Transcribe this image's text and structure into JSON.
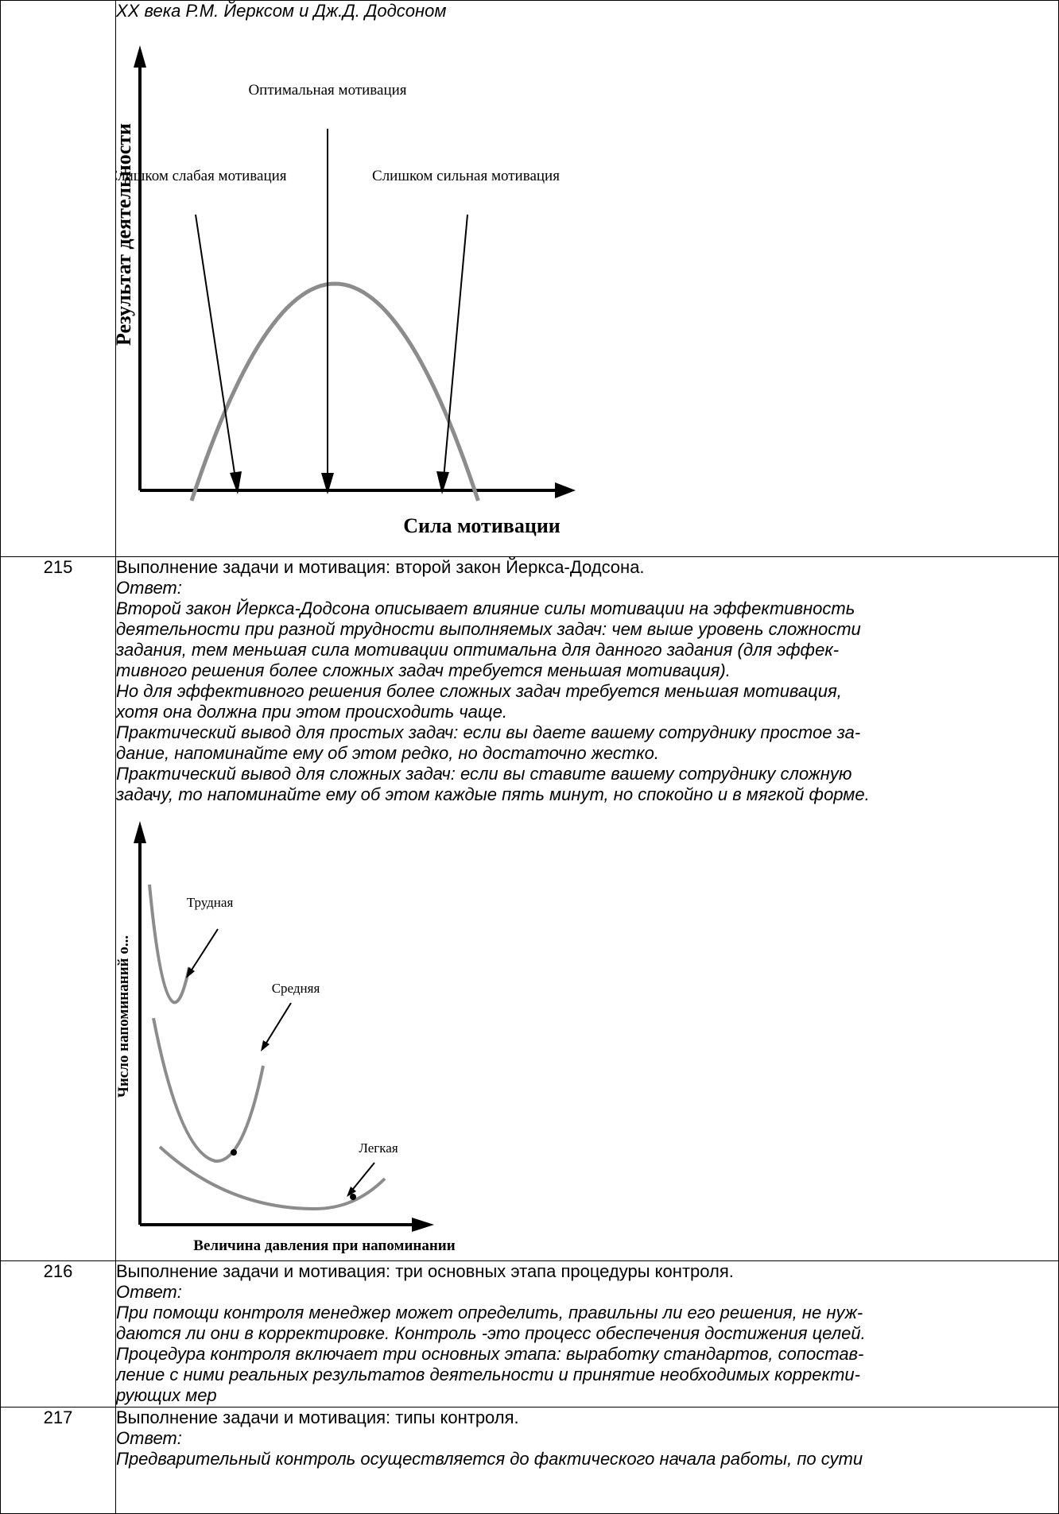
{
  "row_top": {
    "continued_text": "XX века Р.М. Йерксом и Дж.Д. Додсоном",
    "chart_data": {
      "type": "line",
      "title": "",
      "xlabel": "Сила мотивации",
      "ylabel": "Результат деятельности",
      "series": [
        {
          "x": [
            0.1,
            0.3,
            0.5,
            0.7,
            0.9
          ],
          "y": [
            0.35,
            0.8,
            1.0,
            0.8,
            0.35
          ]
        }
      ],
      "annotations": [
        {
          "text": "Оптимальная мотивация",
          "x": 0.5
        },
        {
          "text": "Слишком слабая мотивация",
          "x": 0.2
        },
        {
          "text": "Слишком сильная мотивация",
          "x": 0.8
        }
      ],
      "grid": false
    }
  },
  "row_215": {
    "number": "215",
    "question": "Выполнение задачи и мотивация: второй закон Йеркса-Додсона.",
    "answer_label": "Ответ:",
    "answer_paragraphs": [
      "Второй закон Йеркса-Додсона описывает влияние силы мотивации на эффективность",
      "деятельности при разной трудности выполняемых задач: чем выше уровень сложности",
      "задания, тем меньшая сила мотивации оптимальна для данного задания (для эффек-",
      "тивного решения более сложных задач требуется меньшая мотивация).",
      "Но для эффективного решения более сложных задач требуется меньшая мотивация,",
      "хотя она должна при этом происходить чаще.",
      "Практический вывод для простых задач: если вы даете вашему сотруднику простое за-",
      "дание, напоминайте ему об этом редко, но достаточно жестко.",
      "Практический вывод для сложных задач: если вы ставите вашему сотруднику сложную",
      "задачу, то напоминайте ему об этом каждые пять минут, но спокойно и в мягкой форме."
    ],
    "chart_data": {
      "type": "line",
      "title": "",
      "xlabel": "Величина давления при напоминании",
      "ylabel": "Число напоминаний о...",
      "series": [
        {
          "name": "Трудная",
          "x": [
            0.05,
            0.12,
            0.18
          ],
          "y": [
            0.85,
            0.55,
            0.7
          ]
        },
        {
          "name": "Средняя",
          "x": [
            0.05,
            0.3,
            0.5
          ],
          "y": [
            0.6,
            0.2,
            0.45
          ]
        },
        {
          "name": "Легкая",
          "x": [
            0.08,
            0.7,
            0.95
          ],
          "y": [
            0.25,
            0.05,
            0.15
          ]
        }
      ],
      "grid": false
    }
  },
  "row_216": {
    "number": "216",
    "question": "Выполнение задачи и мотивация: три основных этапа процедуры контроля.",
    "answer_label": "Ответ:",
    "answer_paragraphs": [
      "При помощи контроля менеджер может определить, правильны ли его решения, не нуж-",
      "даются ли они в корректировке. Контроль  -это процесс обеспечения достижения целей.",
      "Процедура контроля включает три основных этапа: выработку стандартов, сопостав-",
      "ление с ними реальных результатов деятельности и принятие необходимых корректи-",
      "рующих мер"
    ]
  },
  "row_217": {
    "number": "217",
    "question": "Выполнение задачи и мотивация: типы контроля.",
    "answer_label": "Ответ:",
    "answer_paragraphs": [
      "Предварительный контроль осуществляется до фактического начала работы, по сути"
    ]
  }
}
